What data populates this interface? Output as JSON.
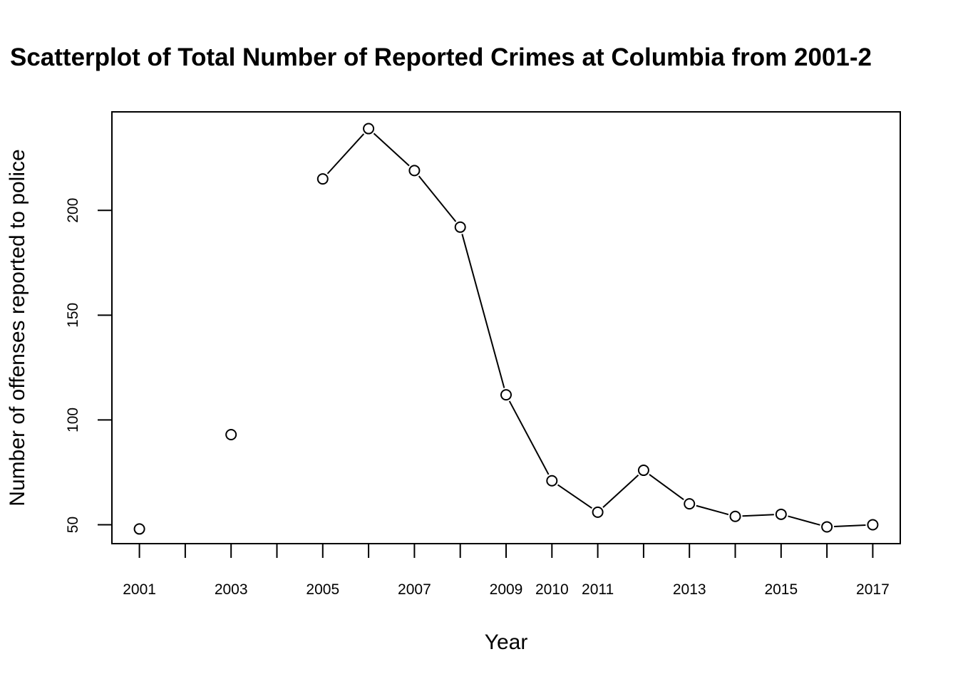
{
  "chart_data": {
    "type": "scatter",
    "title": "Scatterplot of Total Number of Reported Crimes at Columbia from 2001-2",
    "xlabel": "Year",
    "ylabel": "Number of offenses reported to police",
    "xlim": [
      2000.4,
      2017.6
    ],
    "ylim": [
      41,
      247
    ],
    "x_ticks": [
      2001,
      2002,
      2003,
      2004,
      2005,
      2006,
      2007,
      2008,
      2009,
      2010,
      2011,
      2012,
      2013,
      2014,
      2015,
      2016,
      2017
    ],
    "x_tick_labels": [
      {
        "x": 2001,
        "label": "2001"
      },
      {
        "x": 2003,
        "label": "2003"
      },
      {
        "x": 2005,
        "label": "2005"
      },
      {
        "x": 2007,
        "label": "2007"
      },
      {
        "x": 2009,
        "label": "2009"
      },
      {
        "x": 2010,
        "label": "2010"
      },
      {
        "x": 2011,
        "label": "2011"
      },
      {
        "x": 2013,
        "label": "2013"
      },
      {
        "x": 2015,
        "label": "2015"
      },
      {
        "x": 2017,
        "label": "2017"
      }
    ],
    "y_ticks": [
      50,
      100,
      150,
      200
    ],
    "grid": false,
    "points": [
      {
        "x": 2001,
        "y": 48
      },
      {
        "x": 2003,
        "y": 93
      },
      {
        "x": 2005,
        "y": 215
      },
      {
        "x": 2006,
        "y": 239
      },
      {
        "x": 2007,
        "y": 219
      },
      {
        "x": 2008,
        "y": 192
      },
      {
        "x": 2009,
        "y": 112
      },
      {
        "x": 2010,
        "y": 71
      },
      {
        "x": 2011,
        "y": 56
      },
      {
        "x": 2012,
        "y": 76
      },
      {
        "x": 2013,
        "y": 60
      },
      {
        "x": 2014,
        "y": 54
      },
      {
        "x": 2015,
        "y": 55
      },
      {
        "x": 2016,
        "y": 49
      },
      {
        "x": 2017,
        "y": 50
      }
    ],
    "line_connected_from_x": 2005,
    "marker": "open-circle",
    "colors": {
      "marks": "#000000",
      "background": "#ffffff"
    }
  }
}
